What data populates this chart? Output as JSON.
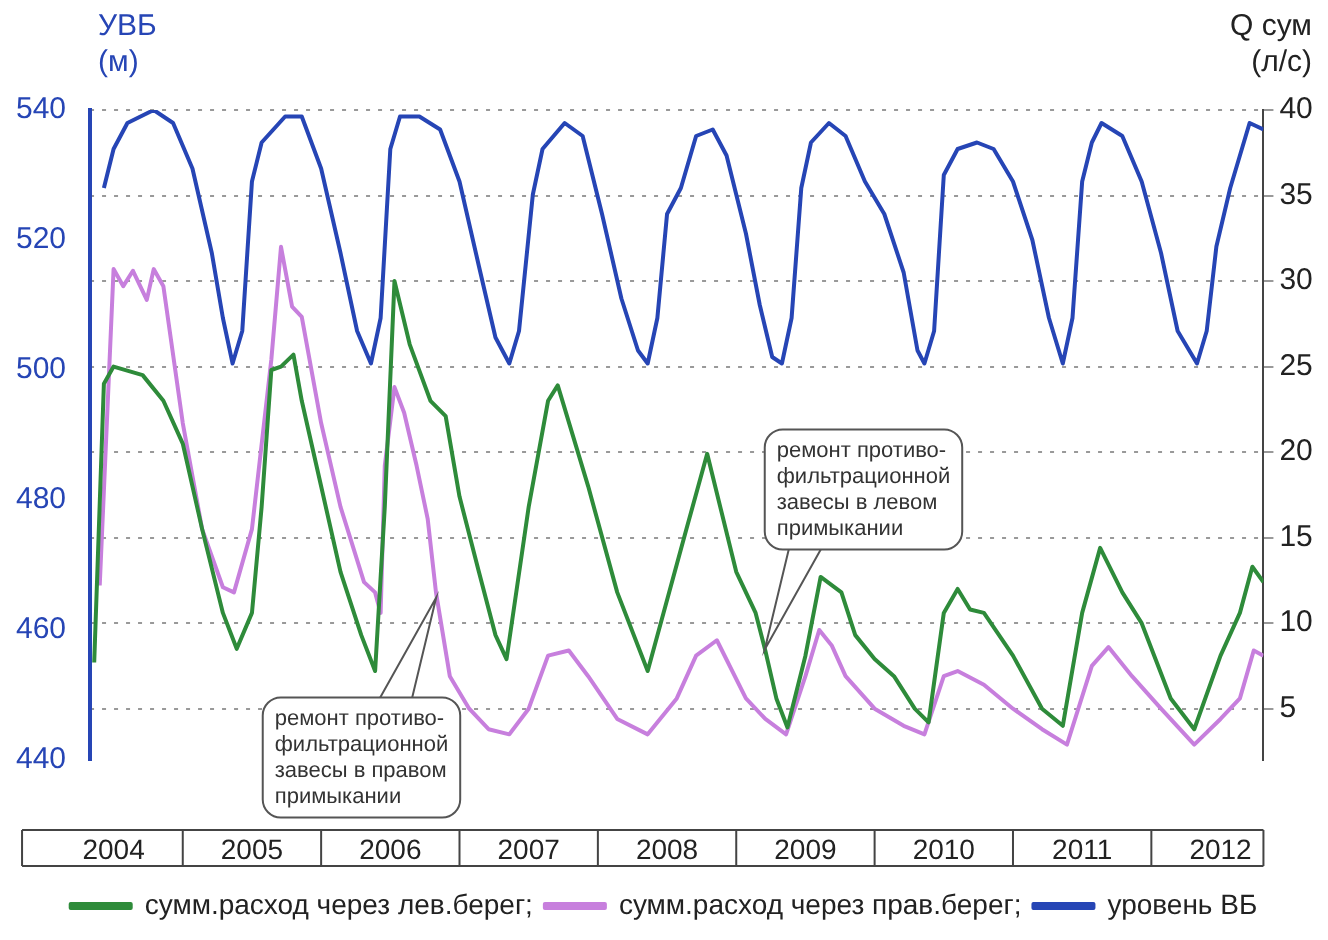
{
  "chart_data": {
    "type": "line",
    "ylabel": "УВБ (м)",
    "y2label": "Q сум (л/с)",
    "xlim": [
      2004.33,
      2012.81
    ],
    "xticks": [
      {
        "value": 2004.5,
        "label": "2004"
      },
      {
        "value": 2005.5,
        "label": "2005"
      },
      {
        "value": 2006.5,
        "label": "2006"
      },
      {
        "value": 2007.5,
        "label": "2007"
      },
      {
        "value": 2008.5,
        "label": "2008"
      },
      {
        "value": 2009.5,
        "label": "2009"
      },
      {
        "value": 2010.5,
        "label": "2010"
      },
      {
        "value": 2011.5,
        "label": "2011"
      },
      {
        "value": 2012.5,
        "label": "2012"
      }
    ],
    "ylim": [
      440,
      540
    ],
    "yticks": [
      440,
      460,
      480,
      500,
      520,
      540
    ],
    "y2lim": [
      2,
      40
    ],
    "y2ticks": [
      5,
      10,
      15,
      20,
      25,
      30,
      35,
      40
    ],
    "grid": "y",
    "legend": "bottom",
    "marker": "none",
    "series": [
      {
        "name": "сумм.расход через лев.берег;",
        "color": "#2e8b3a",
        "axis": "y2",
        "x": [
          2004.36,
          2004.43,
          2004.5,
          2004.71,
          2004.86,
          2005.0,
          2005.14,
          2005.29,
          2005.39,
          2005.5,
          2005.57,
          2005.64,
          2005.71,
          2005.8,
          2005.86,
          2006.0,
          2006.14,
          2006.29,
          2006.39,
          2006.46,
          2006.53,
          2006.64,
          2006.79,
          2006.9,
          2007.0,
          2007.14,
          2007.26,
          2007.34,
          2007.5,
          2007.64,
          2007.71,
          2007.93,
          2008.14,
          2008.36,
          2008.64,
          2008.79,
          2009.0,
          2009.14,
          2009.21,
          2009.29,
          2009.37,
          2009.5,
          2009.61,
          2009.76,
          2009.86,
          2010.0,
          2010.14,
          2010.29,
          2010.39,
          2010.5,
          2010.6,
          2010.69,
          2010.79,
          2011.0,
          2011.21,
          2011.36,
          2011.5,
          2011.63,
          2011.79,
          2011.93,
          2012.14,
          2012.31,
          2012.5,
          2012.64,
          2012.73,
          2012.81
        ],
        "values": [
          7.7,
          24,
          25,
          24.5,
          23,
          20.5,
          15.5,
          10.6,
          8.5,
          10.6,
          16.8,
          24.8,
          25,
          25.7,
          23,
          18,
          13,
          9.3,
          7.2,
          16.8,
          30,
          26.3,
          23,
          22.1,
          17.4,
          13,
          9.3,
          7.9,
          16.8,
          23,
          23.9,
          18,
          11.8,
          7.2,
          15.5,
          19.9,
          13,
          10.6,
          8.4,
          5.6,
          3.9,
          8.1,
          12.7,
          11.8,
          9.3,
          7.9,
          6.9,
          5,
          4.2,
          10.6,
          12,
          10.8,
          10.6,
          8.1,
          5,
          4,
          10.6,
          14.4,
          11.8,
          10,
          5.6,
          3.8,
          8.1,
          10.6,
          13.3,
          12.4
        ]
      },
      {
        "name": "сумм.расход через прав.берег;",
        "color": "#c77fdd",
        "axis": "y2",
        "x": [
          2004.4,
          2004.5,
          2004.57,
          2004.64,
          2004.74,
          2004.79,
          2004.86,
          2005.0,
          2005.14,
          2005.29,
          2005.37,
          2005.5,
          2005.64,
          2005.71,
          2005.79,
          2005.86,
          2006.0,
          2006.14,
          2006.31,
          2006.39,
          2006.43,
          2006.46,
          2006.53,
          2006.6,
          2006.69,
          2006.77,
          2006.83,
          2006.93,
          2007.07,
          2007.21,
          2007.36,
          2007.5,
          2007.64,
          2007.79,
          2007.93,
          2008.14,
          2008.36,
          2008.57,
          2008.71,
          2008.86,
          2009.07,
          2009.21,
          2009.36,
          2009.5,
          2009.6,
          2009.69,
          2009.79,
          2010.0,
          2010.21,
          2010.36,
          2010.5,
          2010.6,
          2010.79,
          2011.0,
          2011.21,
          2011.39,
          2011.57,
          2011.69,
          2011.86,
          2012.07,
          2012.31,
          2012.5,
          2012.64,
          2012.74,
          2012.81
        ],
        "values": [
          12.2,
          30.7,
          29.7,
          30.6,
          28.9,
          30.7,
          29.7,
          21.7,
          15.5,
          12.1,
          11.8,
          15.5,
          25.4,
          32,
          28.5,
          27.9,
          21.7,
          16.8,
          12.4,
          11.8,
          10.6,
          19.2,
          23.8,
          22.3,
          19.2,
          16.1,
          11.8,
          6.9,
          5,
          3.8,
          3.5,
          5,
          8.1,
          8.4,
          6.9,
          4.4,
          3.5,
          5.6,
          8.1,
          9,
          5.6,
          4.4,
          3.5,
          6.9,
          9.6,
          8.7,
          6.9,
          5,
          4,
          3.5,
          6.9,
          7.2,
          6.4,
          5,
          3.8,
          2.9,
          7.5,
          8.6,
          6.9,
          5,
          2.9,
          4.4,
          5.6,
          8.4,
          8.1
        ]
      },
      {
        "name": "уровень ВБ",
        "color": "#2645b5",
        "axis": "y",
        "x": [
          2004.43,
          2004.5,
          2004.6,
          2004.79,
          2004.93,
          2005.07,
          2005.21,
          2005.29,
          2005.36,
          2005.43,
          2005.5,
          2005.57,
          2005.74,
          2005.86,
          2006.0,
          2006.14,
          2006.26,
          2006.36,
          2006.43,
          2006.5,
          2006.57,
          2006.71,
          2006.86,
          2007.0,
          2007.14,
          2007.26,
          2007.36,
          2007.43,
          2007.53,
          2007.6,
          2007.76,
          2007.89,
          2008.03,
          2008.17,
          2008.29,
          2008.36,
          2008.43,
          2008.5,
          2008.6,
          2008.71,
          2008.83,
          2008.93,
          2009.07,
          2009.17,
          2009.26,
          2009.33,
          2009.4,
          2009.47,
          2009.54,
          2009.67,
          2009.79,
          2009.93,
          2010.07,
          2010.21,
          2010.31,
          2010.36,
          2010.43,
          2010.5,
          2010.6,
          2010.74,
          2010.86,
          2011.0,
          2011.14,
          2011.26,
          2011.36,
          2011.43,
          2011.5,
          2011.57,
          2011.64,
          2011.79,
          2011.93,
          2012.07,
          2012.19,
          2012.33,
          2012.4,
          2012.47,
          2012.57,
          2012.64,
          2012.71,
          2012.81
        ],
        "values": [
          528,
          534,
          538,
          540,
          538,
          531,
          518,
          508,
          501,
          506,
          529,
          535,
          539,
          539,
          531,
          518,
          506,
          501,
          508,
          534,
          539,
          539,
          537,
          529,
          516,
          505,
          501,
          506,
          527,
          534,
          538,
          536,
          524,
          511,
          503,
          501,
          508,
          524,
          528,
          536,
          537,
          533,
          521,
          510,
          502,
          501,
          508,
          528,
          535,
          538,
          536,
          529,
          524,
          515,
          503,
          501,
          506,
          530,
          534,
          535,
          534,
          529,
          520,
          508,
          501,
          508,
          529,
          535,
          538,
          536,
          529,
          518,
          506,
          501,
          506,
          519,
          528,
          533,
          538,
          537
        ]
      }
    ],
    "annotations": [
      "ремонт противо-\nфильтрационной\nзавесы в правом\nпримыкании",
      "ремонт противо-\nфильтрационной\nзавесы в левом\nпримыкании"
    ]
  }
}
